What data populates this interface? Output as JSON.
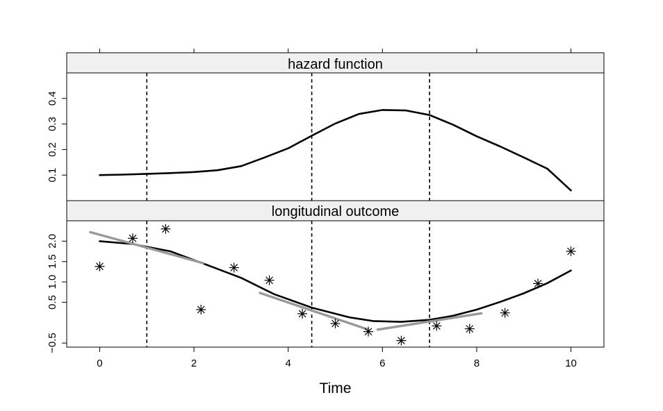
{
  "chart_data": {
    "type": "line",
    "xlabel": "Time",
    "x_ticks": [
      0,
      2,
      4,
      6,
      8,
      10
    ],
    "xlim": [
      -0.7,
      10.7
    ],
    "vlines": [
      1,
      4.5,
      7
    ],
    "panels": [
      {
        "name": "hazard",
        "strip_label": "hazard function",
        "ylim": [
          0.0,
          0.5
        ],
        "y_ticks": [
          0.1,
          0.2,
          0.3,
          0.4
        ],
        "series": [
          {
            "style": "black-line",
            "x": [
              0,
              0.5,
              1,
              1.5,
              2,
              2.5,
              3,
              3.5,
              4,
              4.5,
              5,
              5.5,
              6,
              6.5,
              7,
              7.5,
              8,
              8.5,
              9,
              9.5,
              10
            ],
            "y": [
              0.1,
              0.102,
              0.105,
              0.108,
              0.112,
              0.119,
              0.135,
              0.169,
              0.205,
              0.254,
              0.302,
              0.339,
              0.355,
              0.353,
              0.335,
              0.297,
              0.252,
              0.212,
              0.169,
              0.125,
              0.04
            ]
          }
        ]
      },
      {
        "name": "longitudinal",
        "strip_label": "longitudinal outcome",
        "ylim": [
          -0.6,
          2.5
        ],
        "y_ticks": [
          -0.5,
          0.5,
          1.0,
          1.5,
          2.0
        ],
        "y_tick_labels": [
          "−0.5",
          "0.5",
          "1.0",
          "1.5",
          "2.0"
        ],
        "series": [
          {
            "style": "black-line",
            "x": [
              0,
              0.7,
              1.5,
              2.2,
              3,
              3.7,
              4.5,
              5.3,
              5.8,
              6.4,
              7,
              7.5,
              8,
              8.5,
              9,
              9.5,
              10
            ],
            "y": [
              2.0,
              1.93,
              1.75,
              1.45,
              1.1,
              0.7,
              0.37,
              0.13,
              0.04,
              0.02,
              0.07,
              0.17,
              0.32,
              0.51,
              0.72,
              0.97,
              1.28
            ]
          },
          {
            "style": "gray-line",
            "x": [
              -0.2,
              2.2
            ],
            "y": [
              2.22,
              1.46
            ]
          },
          {
            "style": "gray-line",
            "x": [
              3.4,
              5.7
            ],
            "y": [
              0.73,
              -0.17
            ]
          },
          {
            "style": "gray-line",
            "x": [
              5.9,
              8.1
            ],
            "y": [
              -0.17,
              0.23
            ]
          },
          {
            "style": "points",
            "x": [
              0,
              0.7,
              1.4,
              2.15,
              2.85,
              3.6,
              4.3,
              5.0,
              5.7,
              6.4,
              7.15,
              7.85,
              8.6,
              9.3,
              10.0
            ],
            "y": [
              1.38,
              2.07,
              2.3,
              0.32,
              1.35,
              1.04,
              0.22,
              -0.02,
              -0.22,
              -0.44,
              -0.08,
              -0.15,
              0.24,
              0.96,
              1.75
            ]
          }
        ]
      }
    ]
  }
}
